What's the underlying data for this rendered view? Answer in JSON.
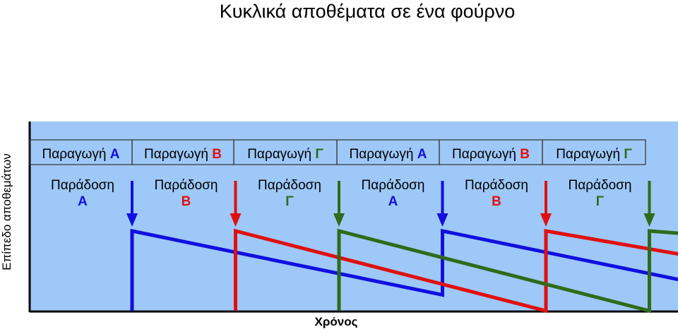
{
  "title": "Κυκλικά αποθέματα σε ένα φούρνο",
  "ylabel": "Επίπεδο αποθεμάτων",
  "xlabel": "Χρόνος",
  "colors": {
    "A": "#1010e0",
    "B": "#e01010",
    "C": "#2f6b1a",
    "background": "#9ec8f7"
  },
  "production_prefix": "Παραγωγή",
  "delivery_prefix": "Παράδοση",
  "chart_data": {
    "type": "line",
    "products": [
      {
        "key": "A",
        "letter": "A"
      },
      {
        "key": "B",
        "letter": "B"
      },
      {
        "key": "C",
        "letter": "Γ"
      }
    ],
    "production_sequence": [
      "A",
      "B",
      "C",
      "A",
      "B",
      "C"
    ],
    "delivery_sequence": [
      "A",
      "B",
      "C",
      "A",
      "B",
      "C"
    ],
    "series": [
      {
        "key": "A",
        "points": [
          [
            0,
            0
          ],
          [
            0,
            1
          ],
          [
            3,
            0.2
          ],
          [
            3,
            1
          ],
          [
            6,
            0.2
          ]
        ]
      },
      {
        "key": "B",
        "points": [
          [
            1,
            0
          ],
          [
            1,
            1
          ],
          [
            4,
            0
          ],
          [
            4,
            1
          ],
          [
            6,
            0.55
          ]
        ]
      },
      {
        "key": "C",
        "points": [
          [
            2,
            0
          ],
          [
            2,
            1
          ],
          [
            5,
            0
          ],
          [
            5,
            1
          ],
          [
            6,
            0.9
          ]
        ]
      }
    ]
  }
}
